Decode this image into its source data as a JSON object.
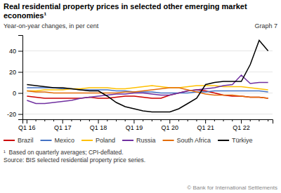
{
  "chart_data": {
    "type": "line",
    "title": "Real residential property prices in selected other emerging market economies¹",
    "subtitle": "Year-on-year changes, in per cent",
    "annotations": [
      "Graph 7",
      "¹  Based on quarterly averages; CPI-deflated.",
      "Source: BIS selected residential property price series.",
      "© Bank for International Settlements"
    ],
    "categories": [
      "Q1 16",
      null,
      null,
      null,
      "Q1 17",
      null,
      null,
      null,
      "Q1 18",
      null,
      null,
      null,
      "Q1 19",
      null,
      null,
      null,
      "Q1 20",
      null,
      null,
      null,
      "Q1 21",
      null,
      null,
      null,
      "Q1 22",
      null,
      null,
      null
    ],
    "series": [
      {
        "name": "Brazil",
        "color": "#cc0000",
        "values": [
          -3,
          -4,
          -5,
          -5,
          -5,
          -5,
          -5,
          -4,
          -5,
          -5,
          -4,
          -3,
          -3,
          -4,
          -5,
          -5,
          -2,
          0,
          2,
          3,
          2,
          0,
          -2,
          -3,
          -3,
          -4,
          -4,
          -5
        ]
      },
      {
        "name": "Mexico",
        "color": "#4472c4",
        "values": [
          5,
          5,
          5,
          5,
          4,
          4,
          3,
          3,
          3,
          3,
          2,
          2,
          1,
          1,
          1,
          0,
          0,
          0,
          0,
          1,
          1,
          2,
          2,
          2,
          2,
          2,
          2,
          1
        ]
      },
      {
        "name": "Poland",
        "color": "#ffc000",
        "values": [
          2,
          2,
          3,
          3,
          3,
          4,
          4,
          5,
          5,
          5,
          4,
          4,
          5,
          6,
          7,
          6,
          5,
          5,
          6,
          7,
          7,
          7,
          6,
          6,
          6,
          5,
          4,
          3
        ]
      },
      {
        "name": "Russia",
        "color": "#7030a0",
        "values": [
          -7,
          -10,
          -10,
          -9,
          -8,
          -7,
          -5,
          -4,
          -3,
          -2,
          -1,
          -1,
          0,
          0,
          -1,
          -2,
          -2,
          0,
          2,
          3,
          4,
          5,
          7,
          8,
          17,
          9,
          10,
          10
        ]
      },
      {
        "name": "South Africa",
        "color": "#e36c09",
        "values": [
          2,
          1,
          1,
          0,
          0,
          0,
          0,
          0,
          0,
          0,
          0,
          1,
          1,
          2,
          3,
          4,
          5,
          5,
          3,
          1,
          -1,
          -2,
          -2,
          -2,
          -3,
          -4,
          -4,
          -5
        ]
      },
      {
        "name": "Türkiye",
        "color": "#000000",
        "values": [
          8,
          7,
          6,
          5,
          5,
          4,
          3,
          2,
          2,
          -3,
          -9,
          -13,
          -15,
          -17,
          -18,
          -18,
          -18,
          -15,
          -10,
          -5,
          8,
          10,
          11,
          11,
          11,
          27,
          50,
          40
        ]
      }
    ],
    "ylim": [
      -25,
      55
    ],
    "yticks": [
      -20,
      0,
      20,
      40
    ],
    "grid": true,
    "legend": "bottom"
  }
}
